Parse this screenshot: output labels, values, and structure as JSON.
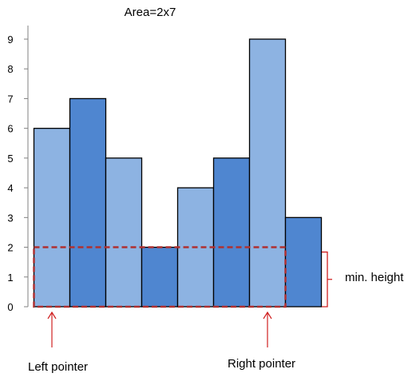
{
  "chart_data": {
    "type": "bar",
    "title": "Area=2x7",
    "values": [
      6,
      7,
      5,
      2,
      4,
      5,
      9,
      3
    ],
    "ylim": [
      0,
      9
    ],
    "yticks": [
      "0",
      "1",
      "2",
      "3",
      "4",
      "5",
      "6",
      "7",
      "8",
      "9"
    ],
    "bar_colors": [
      "#8DB3E2",
      "#4F86D0",
      "#8DB3E2",
      "#4F86D0",
      "#8DB3E2",
      "#4F86D0",
      "#8DB3E2",
      "#4F86D0"
    ],
    "highlight": {
      "from_bar": 0,
      "to_bar": 6,
      "height": 2,
      "color": "#B03030"
    },
    "annotations": {
      "min_height": "min. height",
      "left_pointer": "Left pointer",
      "right_pointer": "Right pointer",
      "left_pointer_bar": 0,
      "right_pointer_bar": 6,
      "color": "#D02020"
    }
  }
}
